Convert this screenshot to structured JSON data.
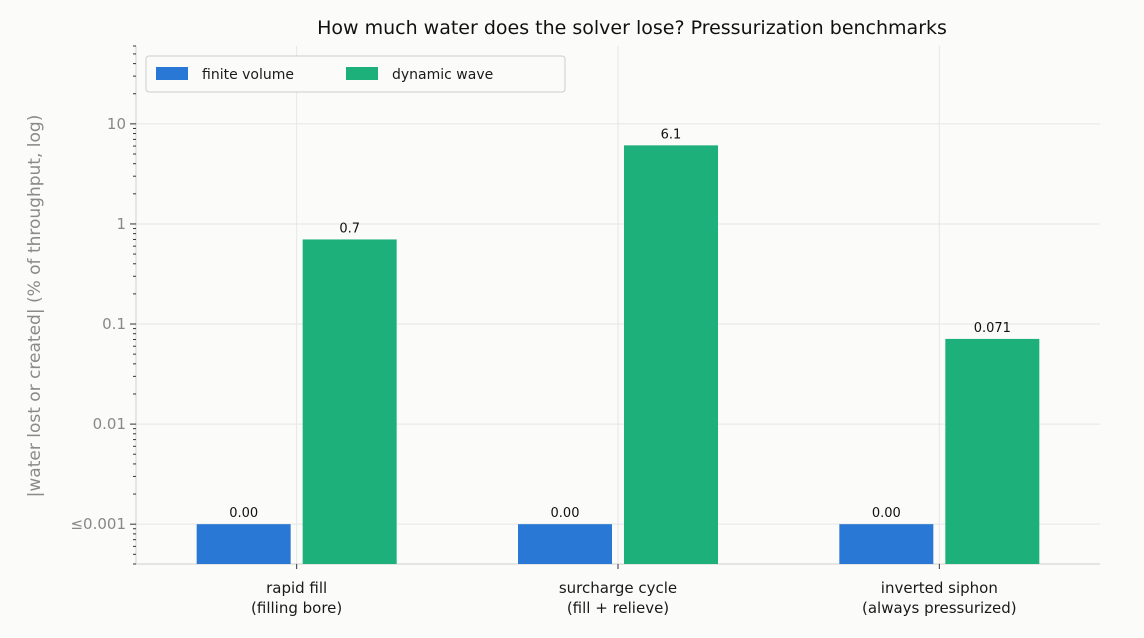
{
  "chart_data": {
    "type": "bar",
    "title": "How much water does the solver lose? Pressurization benchmarks",
    "xlabel": "",
    "ylabel": "|water lost or created| (% of throughput, log)",
    "y_scale": "log",
    "ylim": [
      0.0004,
      60
    ],
    "y_ticks": [
      {
        "value": 10,
        "label": "10"
      },
      {
        "value": 1,
        "label": "1"
      },
      {
        "value": 0.1,
        "label": "0.1"
      },
      {
        "value": 0.01,
        "label": "0.01"
      },
      {
        "value": 0.001,
        "label": "≤0.001"
      }
    ],
    "grid": true,
    "legend_position": "top-left",
    "categories": [
      [
        "rapid fill",
        "(filling bore)"
      ],
      [
        "surcharge cycle",
        "(fill + relieve)"
      ],
      [
        "inverted siphon",
        "(always pressurized)"
      ]
    ],
    "series": [
      {
        "name": "finite volume",
        "color": "#2a78d6",
        "values": [
          0.001,
          0.001,
          0.001
        ],
        "labels": [
          "0.00",
          "0.00",
          "0.00"
        ]
      },
      {
        "name": "dynamic wave",
        "color": "#1db07b",
        "values": [
          0.7,
          6.1,
          0.071
        ],
        "labels": [
          "0.7",
          "6.1",
          "0.071"
        ]
      }
    ]
  }
}
